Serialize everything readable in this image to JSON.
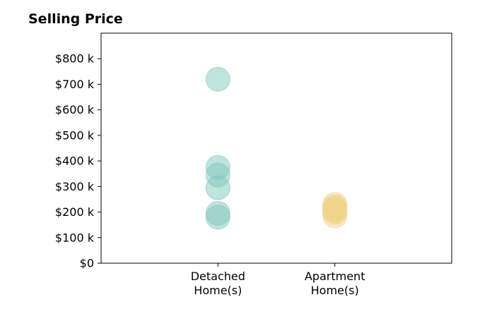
{
  "chart_data": {
    "type": "scatter",
    "title": "Selling Price",
    "xlabel": "",
    "ylabel": "",
    "categories": [
      "Detached\nHome(s)",
      "Apartment\nHome(s)"
    ],
    "x_range": [
      0,
      3
    ],
    "ylim": [
      0,
      900000
    ],
    "y_ticks": [
      0,
      100000,
      200000,
      300000,
      400000,
      500000,
      600000,
      700000,
      800000
    ],
    "y_tick_labels": [
      "$0",
      "$100 k",
      "$200 k",
      "$300 k",
      "$400 k",
      "$500 k",
      "$600 k",
      "$700 k",
      "$800 k"
    ],
    "grid": false,
    "series": [
      {
        "category_index": 0,
        "color": "#7fc7bc",
        "values": [
          720000,
          375000,
          345000,
          295000,
          195000,
          180000
        ]
      },
      {
        "category_index": 1,
        "color": "#f0d48a",
        "values": [
          230000,
          220000,
          215000,
          210000,
          205000,
          200000,
          185000
        ]
      }
    ]
  }
}
